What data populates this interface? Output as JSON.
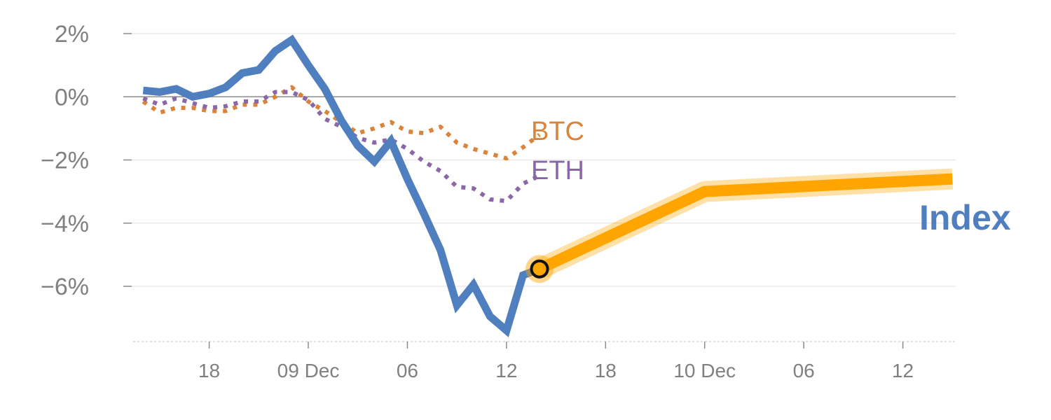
{
  "chart_data": {
    "type": "line",
    "title": "",
    "xlabel": "",
    "ylabel": "",
    "x_range": [
      -1.2,
      49.2
    ],
    "ylim": [
      -7.75,
      2.0
    ],
    "y_ticks": [
      {
        "value": 2,
        "label": "2%"
      },
      {
        "value": 0,
        "label": "0%"
      },
      {
        "value": -2,
        "label": "−2%"
      },
      {
        "value": -4,
        "label": "−4%"
      },
      {
        "value": -6,
        "label": "−6%"
      }
    ],
    "x_ticks": [
      {
        "value": 4,
        "label": "18"
      },
      {
        "value": 10,
        "label": "09 Dec"
      },
      {
        "value": 16,
        "label": "06"
      },
      {
        "value": 22,
        "label": "12"
      },
      {
        "value": 28,
        "label": "18"
      },
      {
        "value": 34,
        "label": "10 Dec"
      },
      {
        "value": 40,
        "label": "06"
      },
      {
        "value": 46,
        "label": "12"
      }
    ],
    "grid": true,
    "zero_line": true,
    "series": [
      {
        "name": "Index",
        "color": "#4f7fbf",
        "style": "solid",
        "x": [
          0,
          1,
          2,
          3,
          4,
          5,
          6,
          7,
          8,
          9,
          10,
          11,
          12,
          13,
          14,
          15,
          16,
          17,
          18,
          19,
          20,
          21,
          22,
          23,
          24
        ],
        "values": [
          0.2,
          0.15,
          0.25,
          0.0,
          0.1,
          0.3,
          0.75,
          0.85,
          1.45,
          1.8,
          1.0,
          0.25,
          -0.75,
          -1.55,
          -2.05,
          -1.4,
          -2.6,
          -3.7,
          -4.85,
          -6.6,
          -5.95,
          -6.95,
          -7.4,
          -5.65,
          -5.45
        ]
      },
      {
        "name": "BTC",
        "color": "#d9843a",
        "style": "dotted",
        "x": [
          0,
          1,
          2,
          3,
          4,
          5,
          6,
          7,
          8,
          9,
          10,
          11,
          12,
          13,
          14,
          15,
          16,
          17,
          18,
          19,
          20,
          21,
          22,
          23,
          24
        ],
        "values": [
          -0.15,
          -0.5,
          -0.35,
          -0.35,
          -0.45,
          -0.45,
          -0.25,
          -0.25,
          0.0,
          0.3,
          -0.15,
          -0.45,
          -0.8,
          -1.15,
          -1.0,
          -0.8,
          -1.1,
          -1.15,
          -0.95,
          -1.45,
          -1.65,
          -1.8,
          -1.95,
          -1.6,
          -1.2
        ]
      },
      {
        "name": "ETH",
        "color": "#8a67a8",
        "style": "dotted",
        "x": [
          0,
          1,
          2,
          3,
          4,
          5,
          6,
          7,
          8,
          9,
          10,
          11,
          12,
          13,
          14,
          15,
          16,
          17,
          18,
          19,
          20,
          21,
          22,
          23,
          24
        ],
        "values": [
          -0.05,
          -0.25,
          -0.05,
          -0.2,
          -0.35,
          -0.3,
          -0.15,
          -0.15,
          0.15,
          0.15,
          -0.1,
          -0.7,
          -0.95,
          -1.3,
          -1.45,
          -1.35,
          -1.65,
          -2.05,
          -2.35,
          -2.85,
          -2.9,
          -3.25,
          -3.3,
          -2.75,
          -2.5
        ]
      }
    ],
    "projection": {
      "color": "#ffa500",
      "x": [
        24,
        34,
        49
      ],
      "values": [
        -5.45,
        -3.0,
        -2.6
      ]
    },
    "marker": {
      "x": 24,
      "value": -5.45,
      "color": "#ffa500"
    },
    "labels": {
      "index": "Index",
      "btc": "BTC",
      "eth": "ETH"
    }
  }
}
